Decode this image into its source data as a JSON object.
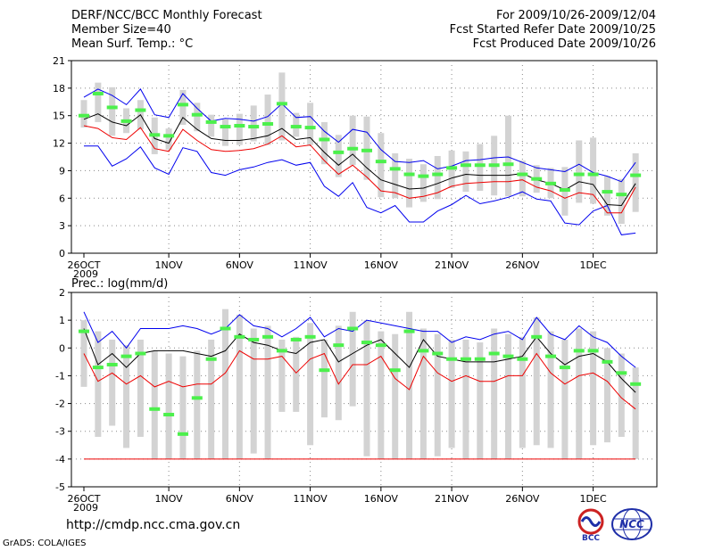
{
  "header": {
    "title": "DERF/NCC/BCC Monthly Forecast",
    "member_size": "Member Size=40",
    "variable": "Mean Surf. Temp.: °C",
    "period": "For 2009/10/26-2009/12/04",
    "fcst_started": "Fcst Started Refer Date 2009/10/25",
    "fcst_produced": "Fcst Produced Date 2009/10/26"
  },
  "footer": {
    "url": "http://cmdp.ncc.cma.gov.cn",
    "credit": "GrADS: COLA/IGES",
    "logo_bcc": "BCC",
    "logo_ncc": "NCC"
  },
  "colors": {
    "bars": "#d3d3d3",
    "green": "#4cf04c",
    "upper": "#0000ee",
    "mean": "#000000",
    "lower": "#ee0000",
    "logo_red": "#cc2222",
    "logo_blue": "#1f2fa8"
  },
  "chart_data": [
    {
      "type": "line",
      "title": "Mean Surf. Temp.: °C",
      "xlabel": "",
      "ylabel": "",
      "x_tick_labels": [
        "26OCT",
        "1NOV",
        "6NOV",
        "11NOV",
        "16NOV",
        "21NOV",
        "26NOV",
        "1DEC"
      ],
      "x_tick_days": [
        1,
        7,
        12,
        17,
        22,
        27,
        32,
        37
      ],
      "x_sub_label": "2009",
      "ylim": [
        0,
        21
      ],
      "y_ticks": [
        0,
        3,
        6,
        9,
        12,
        15,
        18,
        21
      ],
      "series": [
        {
          "name": "upper",
          "values": [
            17.0,
            17.9,
            17.2,
            16.2,
            17.9,
            15.1,
            14.8,
            17.4,
            15.8,
            14.4,
            14.7,
            14.6,
            14.4,
            14.9,
            16.3,
            14.8,
            14.9,
            13.3,
            12.1,
            13.5,
            13.2,
            11.3,
            10.0,
            9.9,
            10.1,
            9.2,
            9.5,
            10.1,
            10.2,
            10.4,
            10.5,
            9.9,
            9.3,
            9.1,
            8.9,
            9.7,
            8.8,
            8.4,
            7.8,
            9.9
          ]
        },
        {
          "name": "mean",
          "values": [
            14.6,
            15.2,
            14.3,
            13.9,
            15.1,
            12.5,
            12.0,
            14.8,
            13.5,
            12.5,
            12.3,
            12.3,
            12.5,
            12.8,
            13.6,
            12.4,
            12.6,
            11.0,
            9.6,
            10.8,
            9.3,
            8.0,
            7.5,
            7.0,
            7.1,
            7.6,
            8.2,
            8.6,
            8.5,
            8.5,
            8.5,
            8.7,
            8.0,
            7.6,
            6.9,
            7.8,
            7.5,
            5.3,
            5.2,
            7.6
          ]
        },
        {
          "name": "lower",
          "values": [
            13.9,
            13.6,
            12.6,
            12.4,
            13.7,
            11.4,
            11.1,
            13.5,
            12.3,
            11.3,
            11.1,
            11.2,
            11.4,
            11.9,
            12.8,
            11.6,
            11.8,
            10.1,
            8.6,
            9.6,
            8.3,
            6.8,
            6.6,
            6.0,
            6.2,
            6.6,
            7.3,
            7.6,
            7.7,
            7.8,
            7.8,
            8.0,
            7.2,
            6.8,
            6.0,
            6.6,
            6.4,
            4.4,
            4.4,
            7.2
          ]
        },
        {
          "name": "min",
          "values": [
            11.7,
            11.7,
            9.5,
            10.3,
            11.6,
            9.3,
            8.6,
            11.5,
            11.1,
            8.8,
            8.5,
            9.1,
            9.4,
            9.9,
            10.2,
            9.6,
            9.9,
            7.3,
            6.2,
            7.7,
            5.0,
            4.4,
            5.2,
            3.4,
            3.4,
            4.6,
            5.3,
            6.3,
            5.4,
            5.7,
            6.1,
            6.7,
            5.9,
            5.7,
            3.3,
            3.1,
            4.6,
            5.2,
            2.0,
            2.2
          ]
        },
        {
          "name": "green_marker",
          "values": [
            15.0,
            17.4,
            15.9,
            14.4,
            15.6,
            12.9,
            12.8,
            16.2,
            15.1,
            14.3,
            13.8,
            13.9,
            13.8,
            14.1,
            16.3,
            13.8,
            13.7,
            12.4,
            11.0,
            11.4,
            11.2,
            10.0,
            9.2,
            8.6,
            8.4,
            8.6,
            9.3,
            9.6,
            9.6,
            9.6,
            9.7,
            8.6,
            8.1,
            7.6,
            6.9,
            8.6,
            8.6,
            6.7,
            6.4,
            8.5
          ]
        },
        {
          "name": "bar_max",
          "values": [
            16.7,
            18.6,
            18.1,
            15.8,
            16.7,
            14.8,
            13.6,
            17.8,
            16.4,
            15.1,
            14.6,
            15.2,
            16.1,
            17.3,
            19.7,
            15.3,
            16.4,
            14.3,
            12.9,
            15.0,
            14.9,
            13.1,
            10.9,
            10.3,
            9.7,
            10.6,
            11.2,
            11.1,
            11.9,
            12.8,
            15.0,
            10.1,
            9.6,
            9.3,
            9.4,
            12.3,
            12.6,
            8.4,
            8.1,
            10.9
          ]
        },
        {
          "name": "bar_min",
          "values": [
            13.7,
            14.3,
            12.8,
            13.1,
            13.5,
            10.8,
            11.3,
            14.0,
            13.3,
            12.7,
            11.7,
            11.8,
            12.2,
            11.8,
            12.3,
            12.7,
            11.8,
            9.7,
            8.3,
            9.6,
            8.0,
            6.1,
            6.0,
            5.0,
            5.6,
            5.9,
            7.1,
            6.7,
            6.8,
            6.3,
            6.2,
            6.2,
            6.6,
            6.0,
            4.1,
            5.5,
            5.4,
            4.1,
            3.2,
            4.5
          ]
        }
      ]
    },
    {
      "type": "line",
      "title": "Prec.: log(mm/d)",
      "xlabel": "",
      "ylabel": "",
      "x_tick_labels": [
        "26OCT",
        "1NOV",
        "6NOV",
        "11NOV",
        "16NOV",
        "21NOV",
        "26NOV",
        "1DEC"
      ],
      "x_tick_days": [
        1,
        7,
        12,
        17,
        22,
        27,
        32,
        37
      ],
      "x_sub_label": "2009",
      "ylim": [
        -5,
        2
      ],
      "y_ticks": [
        -5,
        -4,
        -3,
        -2,
        -1,
        0,
        1,
        2
      ],
      "series": [
        {
          "name": "upper",
          "values": [
            1.3,
            0.2,
            0.6,
            0.0,
            0.7,
            0.7,
            0.7,
            0.8,
            0.7,
            0.5,
            0.7,
            1.2,
            0.8,
            0.7,
            0.4,
            0.7,
            1.1,
            0.4,
            0.7,
            0.6,
            1.0,
            0.9,
            0.8,
            0.7,
            0.6,
            0.6,
            0.2,
            0.4,
            0.3,
            0.5,
            0.6,
            0.3,
            1.1,
            0.5,
            0.3,
            0.8,
            0.4,
            0.2,
            -0.3,
            -0.7
          ]
        },
        {
          "name": "mean",
          "values": [
            0.7,
            -0.6,
            -0.2,
            -0.7,
            -0.2,
            -0.1,
            -0.1,
            -0.1,
            -0.2,
            -0.3,
            -0.1,
            0.5,
            0.2,
            0.1,
            -0.1,
            -0.2,
            0.2,
            0.3,
            -0.5,
            -0.2,
            0.1,
            0.3,
            -0.2,
            -0.7,
            0.3,
            -0.3,
            -0.4,
            -0.5,
            -0.5,
            -0.5,
            -0.4,
            -0.3,
            0.4,
            -0.2,
            -0.6,
            -0.3,
            -0.2,
            -0.5,
            -1.1,
            -1.6
          ]
        },
        {
          "name": "lower",
          "values": [
            -0.2,
            -1.2,
            -0.9,
            -1.3,
            -1.0,
            -1.4,
            -1.2,
            -1.4,
            -1.3,
            -1.3,
            -0.9,
            -0.1,
            -0.4,
            -0.4,
            -0.3,
            -0.9,
            -0.4,
            -0.2,
            -1.3,
            -0.6,
            -0.6,
            -0.3,
            -1.1,
            -1.5,
            -0.3,
            -0.9,
            -1.2,
            -1.0,
            -1.2,
            -1.2,
            -1.0,
            -1.0,
            -0.2,
            -0.9,
            -1.3,
            -1.0,
            -0.9,
            -1.2,
            -1.8,
            -2.2
          ]
        },
        {
          "name": "green_marker",
          "values": [
            0.6,
            -0.7,
            -0.6,
            -0.3,
            -0.2,
            -2.2,
            -2.4,
            -3.1,
            -1.8,
            -0.4,
            0.7,
            0.4,
            0.3,
            0.4,
            -0.1,
            0.3,
            0.4,
            -0.8,
            0.1,
            0.7,
            0.2,
            0.1,
            -0.8,
            0.6,
            -0.1,
            -0.2,
            -0.4,
            -0.4,
            -0.4,
            -0.2,
            -0.3,
            -0.4,
            0.4,
            -0.3,
            -0.7,
            -0.1,
            -0.1,
            -0.5,
            -0.9,
            -1.3
          ]
        },
        {
          "name": "min",
          "values": [
            -4.0,
            -4.0,
            -4.0,
            -4.0,
            -4.0,
            -4.0,
            -4.0,
            -4.0,
            -4.0,
            -4.0,
            -4.0,
            -4.0,
            -4.0,
            -4.0,
            -4.0,
            -4.0,
            -4.0,
            -4.0,
            -4.0,
            -4.0,
            -4.0,
            -4.0,
            -4.0,
            -4.0,
            -4.0,
            -4.0,
            -4.0,
            -4.0,
            -4.0,
            -4.0,
            -4.0,
            -4.0,
            -4.0,
            -4.0,
            -4.0,
            -4.0,
            -4.0,
            -4.0,
            -4.0,
            -4.0
          ]
        },
        {
          "name": "bar_max",
          "values": [
            1.0,
            0.6,
            0.3,
            0.1,
            0.3,
            -0.1,
            -0.2,
            -0.3,
            -0.1,
            0.3,
            1.4,
            1.2,
            0.7,
            0.8,
            0.3,
            0.4,
            0.9,
            0.3,
            0.8,
            1.3,
            1.0,
            0.6,
            0.5,
            1.3,
            0.7,
            0.5,
            0.3,
            0.3,
            0.2,
            0.7,
            0.5,
            0.4,
            1.1,
            0.6,
            0.3,
            0.7,
            0.6,
            0.0,
            -0.2,
            -0.7
          ]
        },
        {
          "name": "bar_min",
          "values": [
            -1.4,
            -3.2,
            -2.8,
            -3.6,
            -3.2,
            -4.0,
            -4.0,
            -4.0,
            -4.0,
            -4.0,
            -4.0,
            -4.0,
            -3.8,
            -4.0,
            -2.3,
            -2.3,
            -3.5,
            -2.5,
            -2.6,
            -2.1,
            -3.9,
            -4.0,
            -4.0,
            -4.0,
            -4.0,
            -3.9,
            -3.6,
            -4.0,
            -4.0,
            -4.0,
            -4.0,
            -3.6,
            -3.5,
            -3.6,
            -4.0,
            -4.0,
            -3.5,
            -3.4,
            -3.2,
            -4.0
          ]
        }
      ]
    }
  ]
}
